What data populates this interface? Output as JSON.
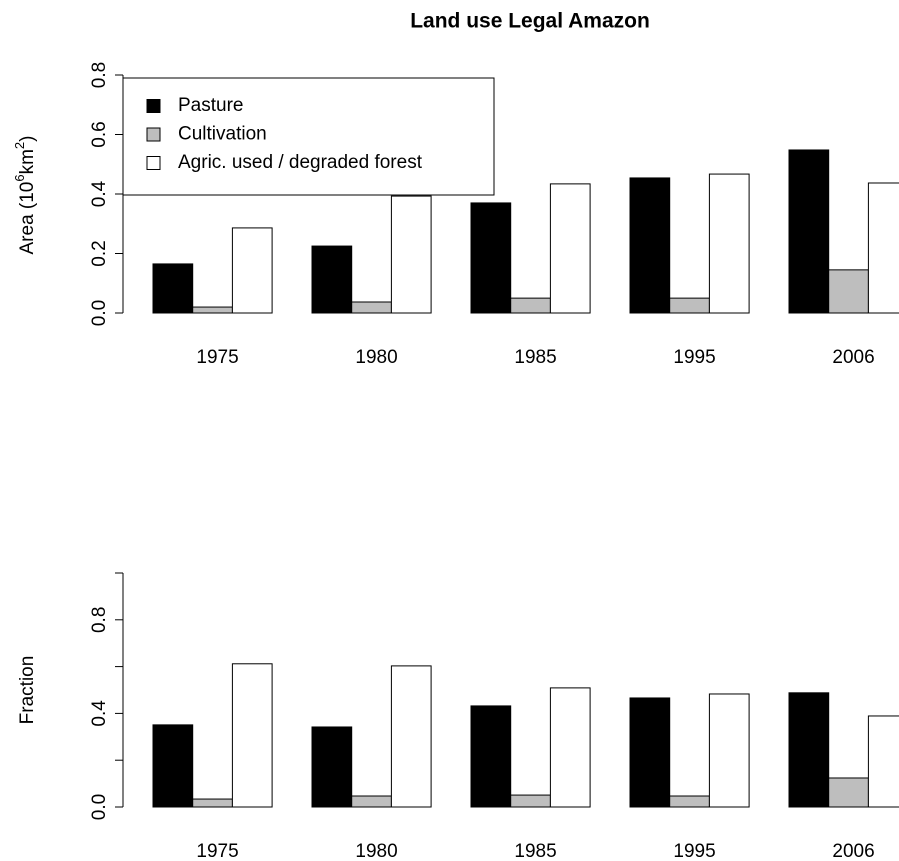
{
  "chart_data": [
    {
      "type": "bar",
      "title": "Land use Legal Amazon",
      "ylabel": [
        "Area (10",
        "6",
        "km",
        "2",
        ")"
      ],
      "categories": [
        "1975",
        "1980",
        "1985",
        "1995",
        "2006"
      ],
      "series": [
        {
          "name": "Pasture",
          "color": "#000000",
          "values": [
            0.165,
            0.225,
            0.37,
            0.454,
            0.548
          ]
        },
        {
          "name": "Cultivation",
          "color": "#bebebe",
          "values": [
            0.02,
            0.037,
            0.05,
            0.05,
            0.145
          ]
        },
        {
          "name": "Agric. used / degraded forest",
          "color": "#ffffff",
          "values": [
            0.286,
            0.393,
            0.434,
            0.467,
            0.437
          ]
        }
      ],
      "ylim": [
        0,
        0.8
      ],
      "yticks": [
        {
          "value": 0,
          "label": "0.0"
        },
        0.2,
        0.4,
        0.6,
        0.8
      ],
      "legend": "topleft"
    },
    {
      "type": "bar",
      "ylabel": [
        "Fraction"
      ],
      "categories": [
        "1975",
        "1980",
        "1985",
        "1995",
        "2006"
      ],
      "series": [
        {
          "color": "#000000",
          "values": [
            0.351,
            0.342,
            0.432,
            0.466,
            0.488
          ]
        },
        {
          "color": "#bebebe",
          "values": [
            0.034,
            0.047,
            0.051,
            0.047,
            0.124
          ]
        },
        {
          "color": "#ffffff",
          "values": [
            0.612,
            0.603,
            0.509,
            0.483,
            0.389
          ]
        }
      ],
      "ylim": [
        0,
        1
      ],
      "yticks": [
        {
          "value": 0,
          "label": "0.0"
        },
        0.4,
        0.8
      ],
      "yticks_unlabeled": [
        0.2,
        0.6,
        1
      ]
    }
  ]
}
